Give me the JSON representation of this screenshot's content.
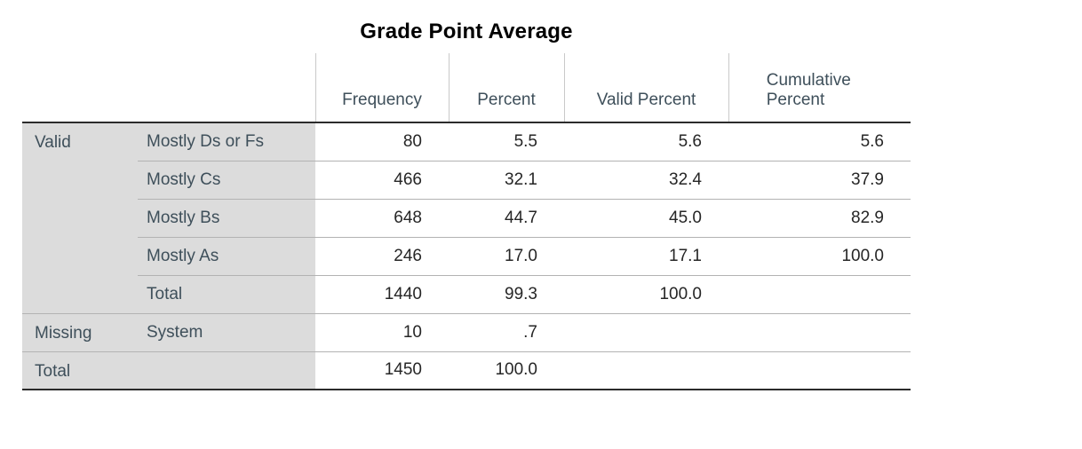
{
  "title": "Grade Point Average",
  "table": {
    "columns": [
      "Frequency",
      "Percent",
      "Valid Percent",
      "Cumulative Percent"
    ],
    "rows": [
      {
        "group": "Valid",
        "label": "Mostly Ds or Fs",
        "values": [
          "80",
          "5.5",
          "5.6",
          "5.6"
        ]
      },
      {
        "group": "",
        "label": "Mostly Cs",
        "values": [
          "466",
          "32.1",
          "32.4",
          "37.9"
        ]
      },
      {
        "group": "",
        "label": "Mostly Bs",
        "values": [
          "648",
          "44.7",
          "45.0",
          "82.9"
        ]
      },
      {
        "group": "",
        "label": "Mostly As",
        "values": [
          "246",
          "17.0",
          "17.1",
          "100.0"
        ]
      },
      {
        "group": "",
        "label": "Total",
        "values": [
          "1440",
          "99.3",
          "100.0",
          ""
        ]
      },
      {
        "group": "Missing",
        "label": "System",
        "values": [
          "10",
          ".7",
          "",
          ""
        ]
      },
      {
        "group": "Total",
        "label": "",
        "values": [
          "1450",
          "100.0",
          "",
          ""
        ]
      }
    ]
  },
  "colors": {
    "stub_background": "#dcdcdc",
    "header_text": "#3e4f5a",
    "value_text": "#262626",
    "heavy_rule": "#2b2b2b",
    "light_rule": "#b3b3b3"
  },
  "chart_data": {
    "type": "table",
    "title": "Grade Point Average",
    "columns": [
      "",
      "",
      "Frequency",
      "Percent",
      "Valid Percent",
      "Cumulative Percent"
    ],
    "rows": [
      [
        "Valid",
        "Mostly Ds or Fs",
        80,
        5.5,
        5.6,
        5.6
      ],
      [
        "",
        "Mostly Cs",
        466,
        32.1,
        32.4,
        37.9
      ],
      [
        "",
        "Mostly Bs",
        648,
        44.7,
        45.0,
        82.9
      ],
      [
        "",
        "Mostly As",
        246,
        17.0,
        17.1,
        100.0
      ],
      [
        "",
        "Total",
        1440,
        99.3,
        100.0,
        null
      ],
      [
        "Missing",
        "System",
        10,
        0.7,
        null,
        null
      ],
      [
        "Total",
        "",
        1450,
        100.0,
        null,
        null
      ]
    ]
  }
}
